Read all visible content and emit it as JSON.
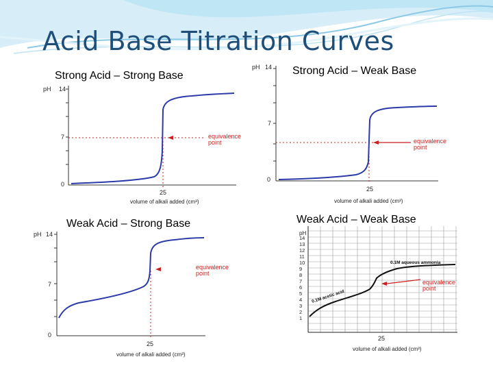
{
  "slide": {
    "title": "Acid Base Titration Curves",
    "accent_color": "#1f4e79",
    "curve_color": "#2b3aa8",
    "marker_color": "#cc1f1f"
  },
  "graphs": [
    {
      "title": "Strong Acid – Strong Base",
      "y_label": "pH",
      "y_ticks": [
        "14",
        "7",
        "0"
      ],
      "x_tick": "25",
      "x_label": "volume of alkali added (cm³)",
      "annotation": [
        "equivalence",
        "point"
      ]
    },
    {
      "title": "Strong Acid – Weak Base",
      "y_label": "pH",
      "y_ticks": [
        "14",
        "7",
        "0"
      ],
      "x_tick": "25",
      "x_label": "volume of alkali added (cm³)",
      "annotation": [
        "equivalence",
        "point"
      ]
    },
    {
      "title": "Weak Acid – Strong Base",
      "y_label": "pH",
      "y_ticks": [
        "14",
        "7",
        "0"
      ],
      "x_tick": "25",
      "x_label": "volume of alkali added (cm³)",
      "annotation": [
        "equivalence",
        "point"
      ]
    },
    {
      "title": "Weak Acid – Weak Base",
      "y_label": "pH",
      "y_ticks": [
        "14",
        "13",
        "12",
        "11",
        "10",
        "9",
        "8",
        "7",
        "6",
        "5",
        "4",
        "3",
        "2",
        "1"
      ],
      "x_tick": "25",
      "x_label": "volume of alkali added (cm³)",
      "series_labels": [
        "0.1M aqueous ammonia",
        "0.1M acetic acid"
      ],
      "annotation": [
        "equivalence",
        "point"
      ]
    }
  ]
}
